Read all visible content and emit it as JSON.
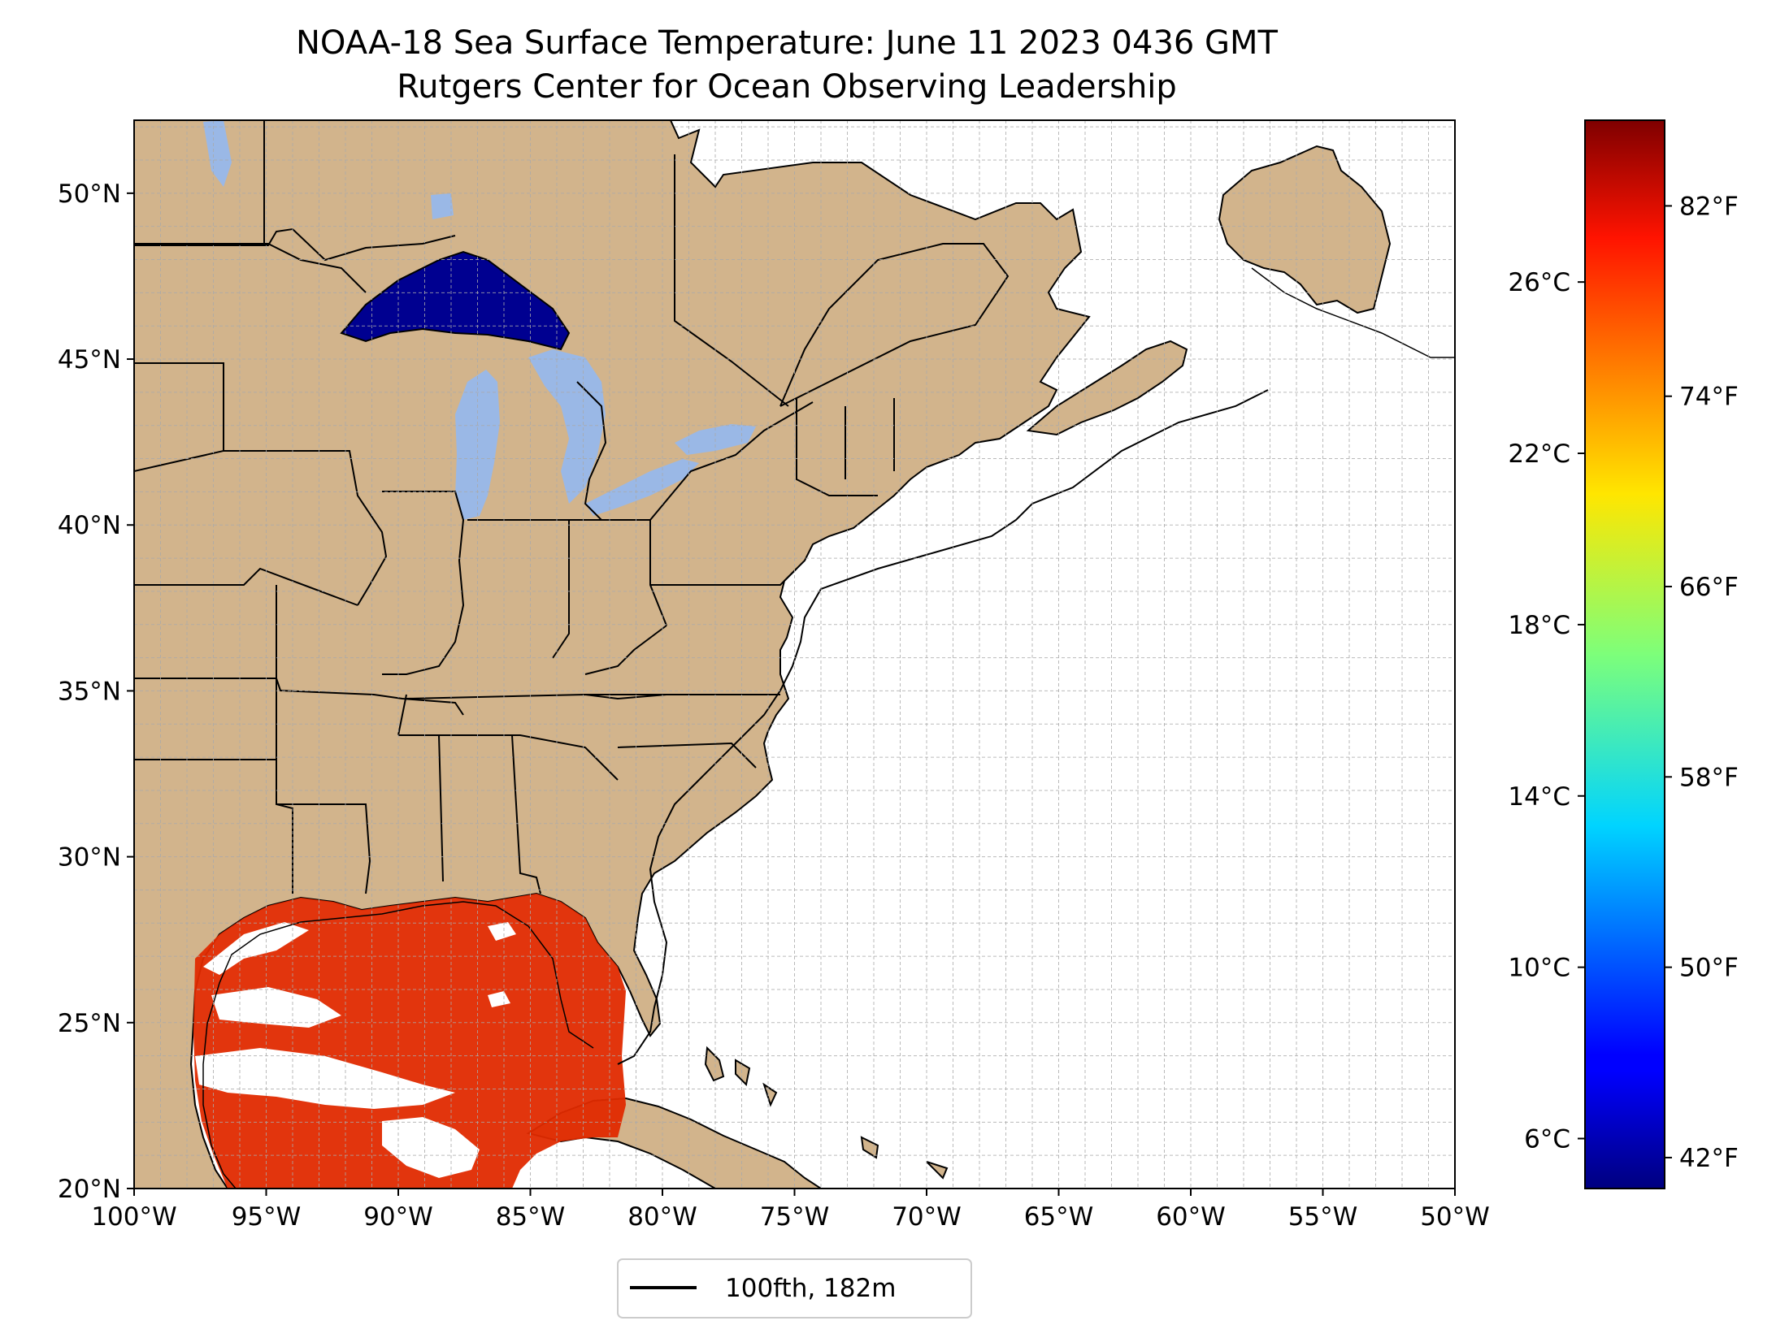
{
  "title": "NOAA-18 Sea Surface Temperature: June 11 2023 0436 GMT",
  "subtitle": "Rutgers Center for Ocean Observing Leadership",
  "map": {
    "lon_range": [
      -100,
      -50
    ],
    "lat_range": [
      20,
      52.2
    ],
    "lon_ticks": [
      "100°W",
      "95°W",
      "90°W",
      "85°W",
      "80°W",
      "75°W",
      "70°W",
      "65°W",
      "60°W",
      "55°W",
      "50°W"
    ],
    "lat_ticks": [
      "20°N",
      "25°N",
      "30°N",
      "35°N",
      "40°N",
      "45°N",
      "50°N"
    ],
    "lat_tick_values": [
      20,
      25,
      30,
      35,
      40,
      45,
      50
    ],
    "lon_tick_values": [
      -100,
      -95,
      -90,
      -85,
      -80,
      -75,
      -70,
      -65,
      -60,
      -55,
      -50
    ],
    "gridline_spacing_deg": 1,
    "land_color": "#d2b48c",
    "lake_color": "#9ab8e6",
    "ocean_color": "#ffffff",
    "gulf_sst_color": "#e02a00",
    "lake_superior_sst_color": "#000090"
  },
  "colorbar": {
    "colormap": "jet",
    "celsius_labels": [
      "6°C",
      "10°C",
      "14°C",
      "18°C",
      "22°C",
      "26°C"
    ],
    "celsius_values": [
      6,
      10,
      14,
      18,
      22,
      26
    ],
    "fahrenheit_labels": [
      "42°F",
      "50°F",
      "58°F",
      "66°F",
      "74°F",
      "82°F"
    ],
    "fahrenheit_values": [
      42,
      50,
      58,
      66,
      74,
      82
    ],
    "range_f": [
      40.7,
      85.6
    ]
  },
  "legend": {
    "label": "100fth, 182m",
    "line_color": "#000000"
  }
}
